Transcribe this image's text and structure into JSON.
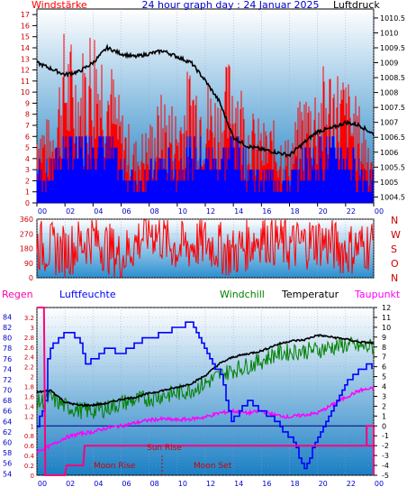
{
  "colors": {
    "wind_speed": "#ff0000",
    "wind_speed_calm": "#0000ff",
    "pressure": "#000000",
    "wind_dir": "#ff0000",
    "humidity": "#0000ff",
    "windchill": "#008000",
    "temperature": "#000000",
    "dewpoint": "#ff00ff",
    "rain": "#ff0080",
    "sky_top": "#ffffff",
    "sky_bottom": "#1a7fc4"
  },
  "chart_data": [
    {
      "type": "line",
      "title": "24 hour graph day : 24 Januar 2025",
      "legend_left": "Windstärke",
      "legend_right": "Luftdruck",
      "x_ticks": [
        "00",
        "02",
        "04",
        "06",
        "08",
        "10",
        "12",
        "14",
        "16",
        "18",
        "20",
        "22",
        "00"
      ],
      "y_left_ticks": [
        "0",
        "1",
        "2",
        "3",
        "4",
        "5",
        "6",
        "7",
        "8",
        "9",
        "10",
        "11",
        "12",
        "13",
        "14",
        "15",
        "16",
        "17"
      ],
      "y_left_range": [
        0,
        17.5
      ],
      "y_right_ticks": [
        "1004.5",
        "1005",
        "1005.5",
        "1006",
        "1006.5",
        "1007",
        "1007.5",
        "1008",
        "1008.5",
        "1009",
        "1009.5",
        "1010",
        "1010.5"
      ],
      "y_right_range": [
        1004.3,
        1010.8
      ],
      "x_range_hours": [
        0,
        24
      ],
      "series": [
        {
          "name": "Windstärke",
          "axis": "left",
          "x": [
            0,
            1,
            2,
            3,
            4,
            5,
            6,
            7,
            8,
            9,
            10,
            11,
            12,
            13,
            14,
            15,
            16,
            17,
            18,
            19,
            20,
            21,
            22,
            23,
            24
          ],
          "y": [
            6,
            5,
            11,
            9,
            12,
            10,
            6,
            4,
            5,
            7,
            6,
            9,
            8,
            7,
            10,
            6,
            5,
            5,
            4,
            7,
            8,
            9,
            8,
            6,
            4
          ]
        },
        {
          "name": "Luftdruck",
          "axis": "right",
          "x": [
            0,
            1,
            2,
            3,
            4,
            5,
            6,
            7,
            8,
            9,
            10,
            11,
            12,
            13,
            14,
            15,
            16,
            17,
            18,
            19,
            20,
            21,
            22,
            23,
            24
          ],
          "y": [
            1009.0,
            1008.8,
            1008.6,
            1008.7,
            1009.0,
            1009.5,
            1009.3,
            1009.2,
            1009.3,
            1009.4,
            1009.2,
            1009.0,
            1008.4,
            1007.7,
            1006.5,
            1006.2,
            1006.1,
            1006.0,
            1005.9,
            1006.3,
            1006.7,
            1006.8,
            1007.0,
            1006.9,
            1006.6
          ]
        }
      ]
    },
    {
      "type": "scatter",
      "right_labels": [
        "N",
        "W",
        "S",
        "O",
        "N"
      ],
      "y_ticks": [
        "0",
        "90",
        "180",
        "270",
        "360"
      ],
      "y_range": [
        0,
        360
      ],
      "series": [
        {
          "name": "Windrichtung",
          "x": [
            0,
            2,
            4,
            6,
            8,
            10,
            12,
            14,
            16,
            18,
            20,
            22,
            24
          ],
          "y": [
            200,
            160,
            250,
            120,
            300,
            180,
            220,
            150,
            260,
            190,
            230,
            170,
            210
          ]
        }
      ]
    },
    {
      "type": "line",
      "labels": {
        "rain": "Regen",
        "humidity": "Luftfeuchte",
        "windchill": "Windchill",
        "temperature": "Temperatur",
        "dewpoint": "Taupunkt",
        "sun_rise": "Sun Rise",
        "moon_rise": "Moon Rise",
        "moon_set": "Moon Set"
      },
      "x_ticks": [
        "00",
        "02",
        "04",
        "06",
        "08",
        "10",
        "12",
        "14",
        "16",
        "18",
        "20",
        "22",
        "00"
      ],
      "left_outer_ticks": [
        "54",
        "56",
        "58",
        "60",
        "62",
        "64",
        "66",
        "68",
        "70",
        "72",
        "74",
        "76",
        "78",
        "80",
        "82",
        "84"
      ],
      "left_outer_range": [
        53.7,
        85.8
      ],
      "left_inner_ticks": [
        "0",
        "0.2",
        "0.4",
        "0.6",
        "0.8",
        "1",
        "1.2",
        "1.4",
        "1.6",
        "1.8",
        "2",
        "2.2",
        "2.4",
        "2.6",
        "2.8",
        "3",
        "3.2"
      ],
      "left_inner_range": [
        0,
        3.4
      ],
      "right_ticks": [
        "-5",
        "-4",
        "-3",
        "-2",
        "-1",
        "0",
        "1",
        "2",
        "3",
        "4",
        "5",
        "6",
        "7",
        "8",
        "9",
        "10",
        "11",
        "12"
      ],
      "right_range": [
        -5,
        12
      ],
      "series": [
        {
          "name": "Luftfeuchte",
          "axis": "left_outer",
          "x": [
            0,
            0.6,
            0.8,
            1.5,
            2.2,
            3.0,
            3.4,
            4.0,
            5.0,
            6.0,
            7.0,
            8.0,
            9.0,
            10.0,
            11.0,
            11.6,
            12.4,
            13.2,
            13.8,
            14.4,
            15.0,
            16.0,
            17.0,
            18.0,
            18.6,
            19.0,
            19.4,
            19.8,
            20.6,
            21.4,
            22.2,
            23.0,
            23.6,
            24.0
          ],
          "y": [
            63,
            68,
            77,
            80,
            81,
            80,
            75,
            76,
            78,
            77,
            79,
            80,
            81,
            82,
            83,
            80,
            76,
            72,
            64,
            66,
            68,
            66,
            64,
            61,
            58,
            55,
            57,
            60,
            64,
            68,
            72,
            74,
            75,
            74
          ]
        },
        {
          "name": "Windchill",
          "axis": "right",
          "x": [
            0,
            1,
            2,
            3,
            4,
            5,
            6,
            7,
            8,
            9,
            10,
            11,
            12,
            13,
            14,
            15,
            16,
            17,
            18,
            19,
            20,
            21,
            22,
            23,
            24
          ],
          "y": [
            2.3,
            2.8,
            2.0,
            1.6,
            1.5,
            1.8,
            2.3,
            2.6,
            2.8,
            3.1,
            3.3,
            3.7,
            4.3,
            5.1,
            5.7,
            6.1,
            6.6,
            7.3,
            7.5,
            7.6,
            7.7,
            8.0,
            8.2,
            8.0,
            8.0
          ]
        },
        {
          "name": "Temperatur",
          "axis": "right",
          "x": [
            0,
            1,
            2,
            3,
            4,
            5,
            6,
            7,
            8,
            9,
            10,
            11,
            12,
            13,
            14,
            15,
            16,
            17,
            18,
            19,
            20,
            21,
            22,
            23,
            24
          ],
          "y": [
            3.4,
            3.6,
            2.4,
            2.1,
            2.1,
            2.3,
            2.7,
            2.9,
            3.3,
            3.6,
            3.9,
            4.3,
            5.1,
            6.3,
            7.0,
            7.3,
            7.6,
            8.2,
            8.6,
            8.7,
            9.2,
            9.0,
            8.8,
            8.5,
            8.4
          ]
        },
        {
          "name": "Taupunkt",
          "axis": "right",
          "x": [
            0,
            1,
            2,
            3,
            4,
            5,
            6,
            7,
            8,
            9,
            10,
            11,
            12,
            13,
            14,
            15,
            16,
            17,
            18,
            19,
            20,
            21,
            22,
            23,
            24
          ],
          "y": [
            -2.6,
            -2.0,
            -1.2,
            -0.8,
            -0.6,
            -0.2,
            0.0,
            0.3,
            0.6,
            0.7,
            0.6,
            0.7,
            0.9,
            1.3,
            1.5,
            1.3,
            1.5,
            1.1,
            0.9,
            1.1,
            1.3,
            2.1,
            2.9,
            3.6,
            3.8
          ]
        },
        {
          "name": "Regen",
          "axis": "left_inner",
          "x": [
            0,
            0.5,
            0.6,
            0.8,
            2.0,
            2.1,
            3.3,
            3.4,
            24.0
          ],
          "y": [
            3.4,
            3.4,
            0,
            0,
            0,
            0.2,
            0.2,
            0.6,
            0.6
          ]
        }
      ]
    }
  ]
}
